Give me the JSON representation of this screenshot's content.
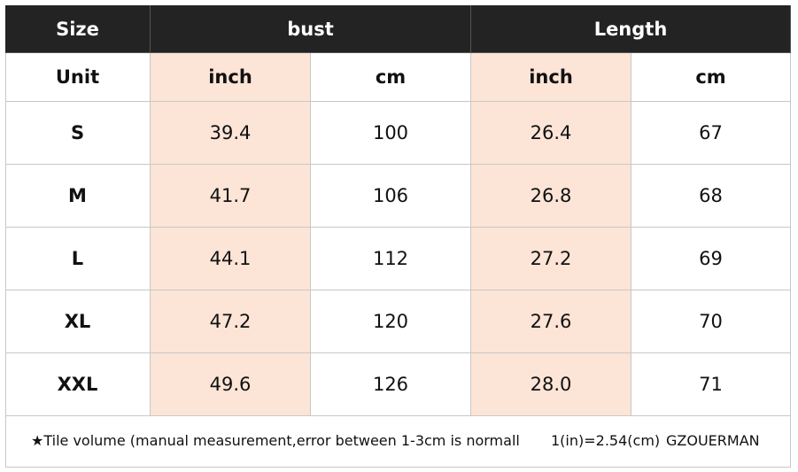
{
  "header": {
    "size": "Size",
    "bust": "bust",
    "length": "Length"
  },
  "unit_row": {
    "label": "Unit",
    "columns": [
      "inch",
      "cm",
      "inch",
      "cm"
    ]
  },
  "rows": [
    [
      "S",
      "39.4",
      "100",
      "26.4",
      "67"
    ],
    [
      "M",
      "41.7",
      "106",
      "26.8",
      "68"
    ],
    [
      "L",
      "44.1",
      "112",
      "27.2",
      "69"
    ],
    [
      "XL",
      "47.2",
      "120",
      "27.6",
      "70"
    ],
    [
      "XXL",
      "49.6",
      "126",
      "28.0",
      "71"
    ]
  ],
  "footer": {
    "note": "★Tile volume (manual measurement,error between 1-3cm is normall",
    "conversion": "1(in)=2.54(cm)",
    "brand": "GZOUERMAN"
  }
}
